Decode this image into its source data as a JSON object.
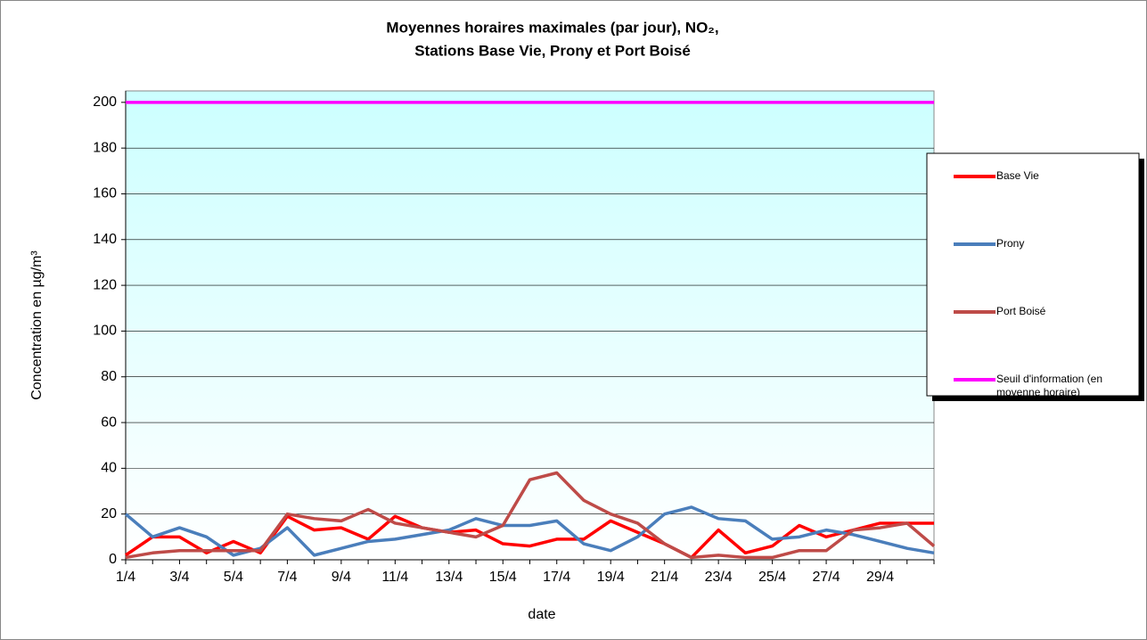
{
  "chart_data": {
    "type": "line",
    "title": "Moyennes horaires maximales (par jour), NO₂,",
    "subtitle": "Stations Base Vie, Prony et Port Boisé",
    "xlabel": "date",
    "ylabel": "Concentration en µg/m³",
    "categories": [
      "1/4",
      null,
      "3/4",
      null,
      "5/4",
      null,
      "7/4",
      null,
      "9/4",
      null,
      "11/4",
      null,
      "13/4",
      null,
      "15/4",
      null,
      "17/4",
      null,
      "19/4",
      null,
      "21/4",
      null,
      "23/4",
      null,
      "25/4",
      null,
      "27/4",
      null,
      "29/4",
      null,
      null
    ],
    "series": [
      {
        "name": "Base Vie",
        "color": "#ff0000",
        "values": [
          2,
          10,
          10,
          3,
          8,
          3,
          19,
          13,
          14,
          9,
          19,
          14,
          12,
          13,
          7,
          6,
          9,
          9,
          17,
          12,
          7,
          1,
          13,
          3,
          6,
          15,
          10,
          13,
          16,
          16,
          16
        ]
      },
      {
        "name": "Prony",
        "color": "#4a7ebb",
        "values": [
          20,
          10,
          14,
          10,
          2,
          5,
          14,
          2,
          5,
          8,
          9,
          11,
          13,
          18,
          15,
          15,
          17,
          7,
          4,
          10,
          20,
          23,
          18,
          17,
          9,
          10,
          13,
          11,
          8,
          5,
          3
        ]
      },
      {
        "name": "Port Boisé",
        "color": "#be4b48",
        "values": [
          1,
          3,
          4,
          4,
          4,
          4,
          20,
          18,
          17,
          22,
          16,
          14,
          12,
          10,
          15,
          35,
          38,
          26,
          20,
          16,
          7,
          1,
          2,
          1,
          1,
          4,
          4,
          13,
          14,
          16,
          6
        ]
      },
      {
        "name": "Seuil d'information (en moyenne horaire)",
        "color": "#ff00ff",
        "values": [
          200,
          200,
          200,
          200,
          200,
          200,
          200,
          200,
          200,
          200,
          200,
          200,
          200,
          200,
          200,
          200,
          200,
          200,
          200,
          200,
          200,
          200,
          200,
          200,
          200,
          200,
          200,
          200,
          200,
          200,
          200
        ]
      }
    ],
    "ylim": [
      0,
      205
    ],
    "yticks": [
      0,
      20,
      40,
      60,
      80,
      100,
      120,
      140,
      160,
      180,
      200
    ],
    "grid": true,
    "legend": "right"
  }
}
